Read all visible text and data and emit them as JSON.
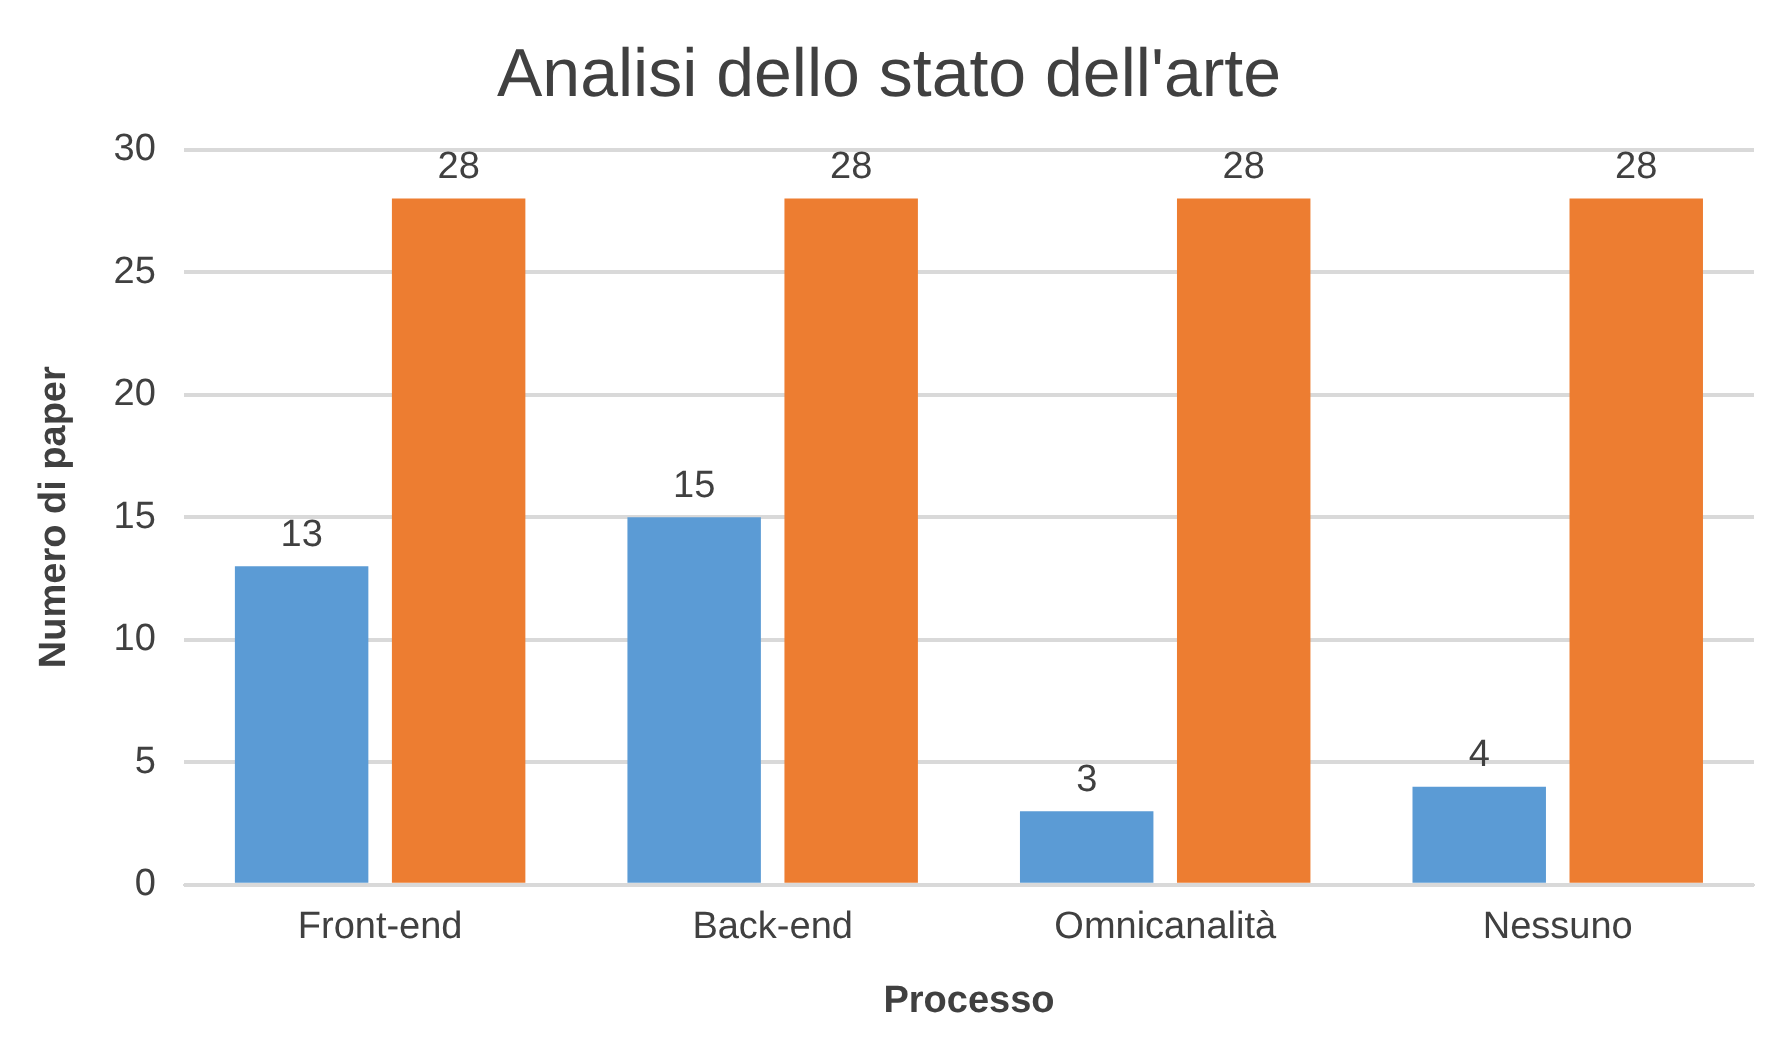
{
  "chart_data": {
    "type": "bar",
    "title": "Analisi dello stato dell'arte",
    "xlabel": "Processo",
    "ylabel": "Numero di paper",
    "categories": [
      "Front-end",
      "Back-end",
      "Omnicanalità",
      "Nessuno"
    ],
    "series": [
      {
        "color": "#5b9bd5",
        "values": [
          13,
          15,
          3,
          4
        ]
      },
      {
        "color": "#ed7d31",
        "values": [
          28,
          28,
          28,
          28
        ]
      }
    ],
    "ylim": [
      0,
      30
    ],
    "yticks": [
      0,
      5,
      10,
      15,
      20,
      25,
      30
    ],
    "grid": "y",
    "legend": false,
    "data_labels": true
  }
}
